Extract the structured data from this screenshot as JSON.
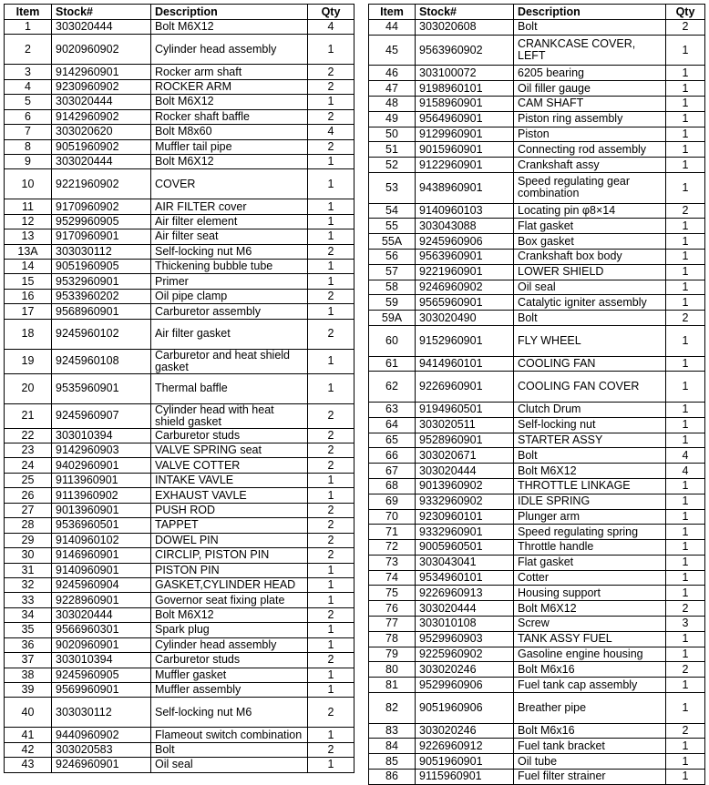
{
  "left_table": {
    "header": [
      "Item",
      "Stock#",
      "Description",
      "Qty"
    ],
    "rows": [
      [
        "1",
        "303020444",
        "Bolt M6X12",
        "4"
      ],
      [
        "2",
        "9020960902",
        "Cylinder head assembly",
        "1"
      ],
      [
        "3",
        "9142960901",
        "Rocker arm shaft",
        "2"
      ],
      [
        "4",
        "9230960902",
        "ROCKER ARM",
        "2"
      ],
      [
        "5",
        "303020444",
        "Bolt M6X12",
        "1"
      ],
      [
        "6",
        "9142960902",
        "Rocker shaft baffle",
        "2"
      ],
      [
        "7",
        "303020620",
        "Bolt M8x60",
        "4"
      ],
      [
        "8",
        "9051960902",
        "Muffler tail pipe",
        "2"
      ],
      [
        "9",
        "303020444",
        "Bolt M6X12",
        "1"
      ],
      [
        "10",
        "9221960902",
        "COVER",
        "1"
      ],
      [
        "11",
        "9170960902",
        "AIR FILTER cover",
        "1"
      ],
      [
        "12",
        "9529960905",
        "Air  filter element",
        "1"
      ],
      [
        "13",
        "9170960901",
        "Air  filter seat",
        "1"
      ],
      [
        "13A",
        "303030112",
        "Self-locking nut M6",
        "2"
      ],
      [
        "14",
        "9051960905",
        "Thickening bubble tube",
        "1"
      ],
      [
        "15",
        "9532960901",
        "Primer",
        "1"
      ],
      [
        "16",
        "9533960202",
        "Oil pipe clamp",
        "2"
      ],
      [
        "17",
        "9568960901",
        "Carburetor assembly",
        "1"
      ],
      [
        "18",
        "9245960102",
        "Air filter gasket",
        "2"
      ],
      [
        "19",
        "9245960108",
        "Carburetor and heat shield gasket",
        "1"
      ],
      [
        "20",
        "9535960901",
        "Thermal baffle",
        "1"
      ],
      [
        "21",
        "9245960907",
        "Cylinder head with heat shield gasket",
        "2"
      ],
      [
        "22",
        "303010394",
        "Carburetor studs",
        "2"
      ],
      [
        "23",
        "9142960903",
        "VALVE SPRING seat",
        "2"
      ],
      [
        "24",
        "9402960901",
        "VALVE COTTER",
        "2"
      ],
      [
        "25",
        "9113960901",
        "INTAKE VAVLE",
        "1"
      ],
      [
        "26",
        "9113960902",
        "EXHAUST VAVLE",
        "1"
      ],
      [
        "27",
        "9013960901",
        "PUSH ROD",
        "2"
      ],
      [
        "28",
        "9536960501",
        "TAPPET",
        "2"
      ],
      [
        "29",
        "9140960102",
        "DOWEL PIN",
        "2"
      ],
      [
        "30",
        "9146960901",
        "CIRCLIP, PISTON PIN",
        "2"
      ],
      [
        "31",
        "9140960901",
        "PISTON PIN",
        "1"
      ],
      [
        "32",
        "9245960904",
        "GASKET,CYLINDER HEAD",
        "1"
      ],
      [
        "33",
        "9228960901",
        "Governor seat fixing plate",
        "1"
      ],
      [
        "34",
        "303020444",
        "Bolt M6X12",
        "2"
      ],
      [
        "35",
        "9566960301",
        "Spark plug",
        "1"
      ],
      [
        "36",
        "9020960901",
        "Cylinder head assembly",
        "1"
      ],
      [
        "37",
        "303010394",
        "Carburetor studs",
        "2"
      ],
      [
        "38",
        "9245960905",
        "Muffler gasket",
        "1"
      ],
      [
        "39",
        "9569960901",
        "Muffler assembly",
        "1"
      ],
      [
        "40",
        "303030112",
        "Self-locking nut M6",
        "2"
      ],
      [
        "41",
        "9440960902",
        "Flameout switch combination",
        "1"
      ],
      [
        "42",
        "303020583",
        "Bolt",
        "2"
      ],
      [
        "43",
        "9246960901",
        "Oil seal",
        "1"
      ]
    ]
  },
  "right_table": {
    "header": [
      "Item",
      "Stock#",
      "Description",
      "Qty"
    ],
    "rows": [
      [
        "44",
        "303020608",
        "Bolt",
        "2"
      ],
      [
        "45",
        "9563960902",
        "CRANKCASE COVER, LEFT",
        "1"
      ],
      [
        "46",
        "303100072",
        "6205 bearing",
        "1"
      ],
      [
        "47",
        "9198960101",
        "Oil filler gauge",
        "1"
      ],
      [
        "48",
        "9158960901",
        "CAM SHAFT",
        "1"
      ],
      [
        "49",
        "9564960901",
        "Piston ring assembly",
        "1"
      ],
      [
        "50",
        "9129960901",
        "Piston",
        "1"
      ],
      [
        "51",
        "9015960901",
        "Connecting rod assembly",
        "1"
      ],
      [
        "52",
        "9122960901",
        "Crankshaft assy",
        "1"
      ],
      [
        "53",
        "9438960901",
        "Speed regulating gear combination",
        "1"
      ],
      [
        "54",
        "9140960103",
        "Locating pin φ8×14",
        "2"
      ],
      [
        "55",
        "303043088",
        "Flat gasket",
        "1"
      ],
      [
        "55A",
        "9245960906",
        "Box gasket",
        "1"
      ],
      [
        "56",
        "9563960901",
        "Crankshaft box body",
        "1"
      ],
      [
        "57",
        "9221960901",
        "LOWER SHIELD",
        "1"
      ],
      [
        "58",
        "9246960902",
        "Oil seal",
        "1"
      ],
      [
        "59",
        "9565960901",
        "Catalytic igniter assembly",
        "1"
      ],
      [
        "59A",
        "303020490",
        "Bolt",
        "2"
      ],
      [
        "60",
        "9152960901",
        "FLY WHEEL",
        "1"
      ],
      [
        "61",
        "9414960101",
        "COOLING FAN",
        "1"
      ],
      [
        "62",
        "9226960901",
        "COOLING FAN COVER",
        "1"
      ],
      [
        "63",
        "9194960501",
        "Clutch Drum",
        "1"
      ],
      [
        "64",
        "303020511",
        "Self-locking nut",
        "1"
      ],
      [
        "65",
        "9528960901",
        "STARTER ASSY",
        "1"
      ],
      [
        "66",
        "303020671",
        "Bolt",
        "4"
      ],
      [
        "67",
        "303020444",
        "Bolt M6X12",
        "4"
      ],
      [
        "68",
        "9013960902",
        "THROTTLE LINKAGE",
        "1"
      ],
      [
        "69",
        "9332960902",
        "IDLE SPRING",
        "1"
      ],
      [
        "70",
        "9230960101",
        "Plunger arm",
        "1"
      ],
      [
        "71",
        "9332960901",
        "Speed regulating spring",
        "1"
      ],
      [
        "72",
        "9005960501",
        "Throttle handle",
        "1"
      ],
      [
        "73",
        "303043041",
        "Flat gasket",
        "1"
      ],
      [
        "74",
        "9534960101",
        "Cotter",
        "1"
      ],
      [
        "75",
        "9226960913",
        "Housing support",
        "1"
      ],
      [
        "76",
        "303020444",
        "Bolt M6X12",
        "2"
      ],
      [
        "77",
        "303010108",
        "Screw",
        "3"
      ],
      [
        "78",
        "9529960903",
        "TANK ASSY FUEL",
        "1"
      ],
      [
        "79",
        "9225960902",
        "Gasoline engine housing",
        "1"
      ],
      [
        "80",
        "303020246",
        "Bolt M6x16",
        "2"
      ],
      [
        "81",
        "9529960906",
        "Fuel tank cap assembly",
        "1"
      ],
      [
        "82",
        "9051960906",
        "Breather pipe",
        "1"
      ],
      [
        "83",
        "303020246",
        "Bolt M6x16",
        "2"
      ],
      [
        "84",
        "9226960912",
        "Fuel tank bracket",
        "1"
      ],
      [
        "85",
        "9051960901",
        "Oil tube",
        "1"
      ],
      [
        "86",
        "9115960901",
        "Fuel filter strainer",
        "1"
      ]
    ]
  }
}
